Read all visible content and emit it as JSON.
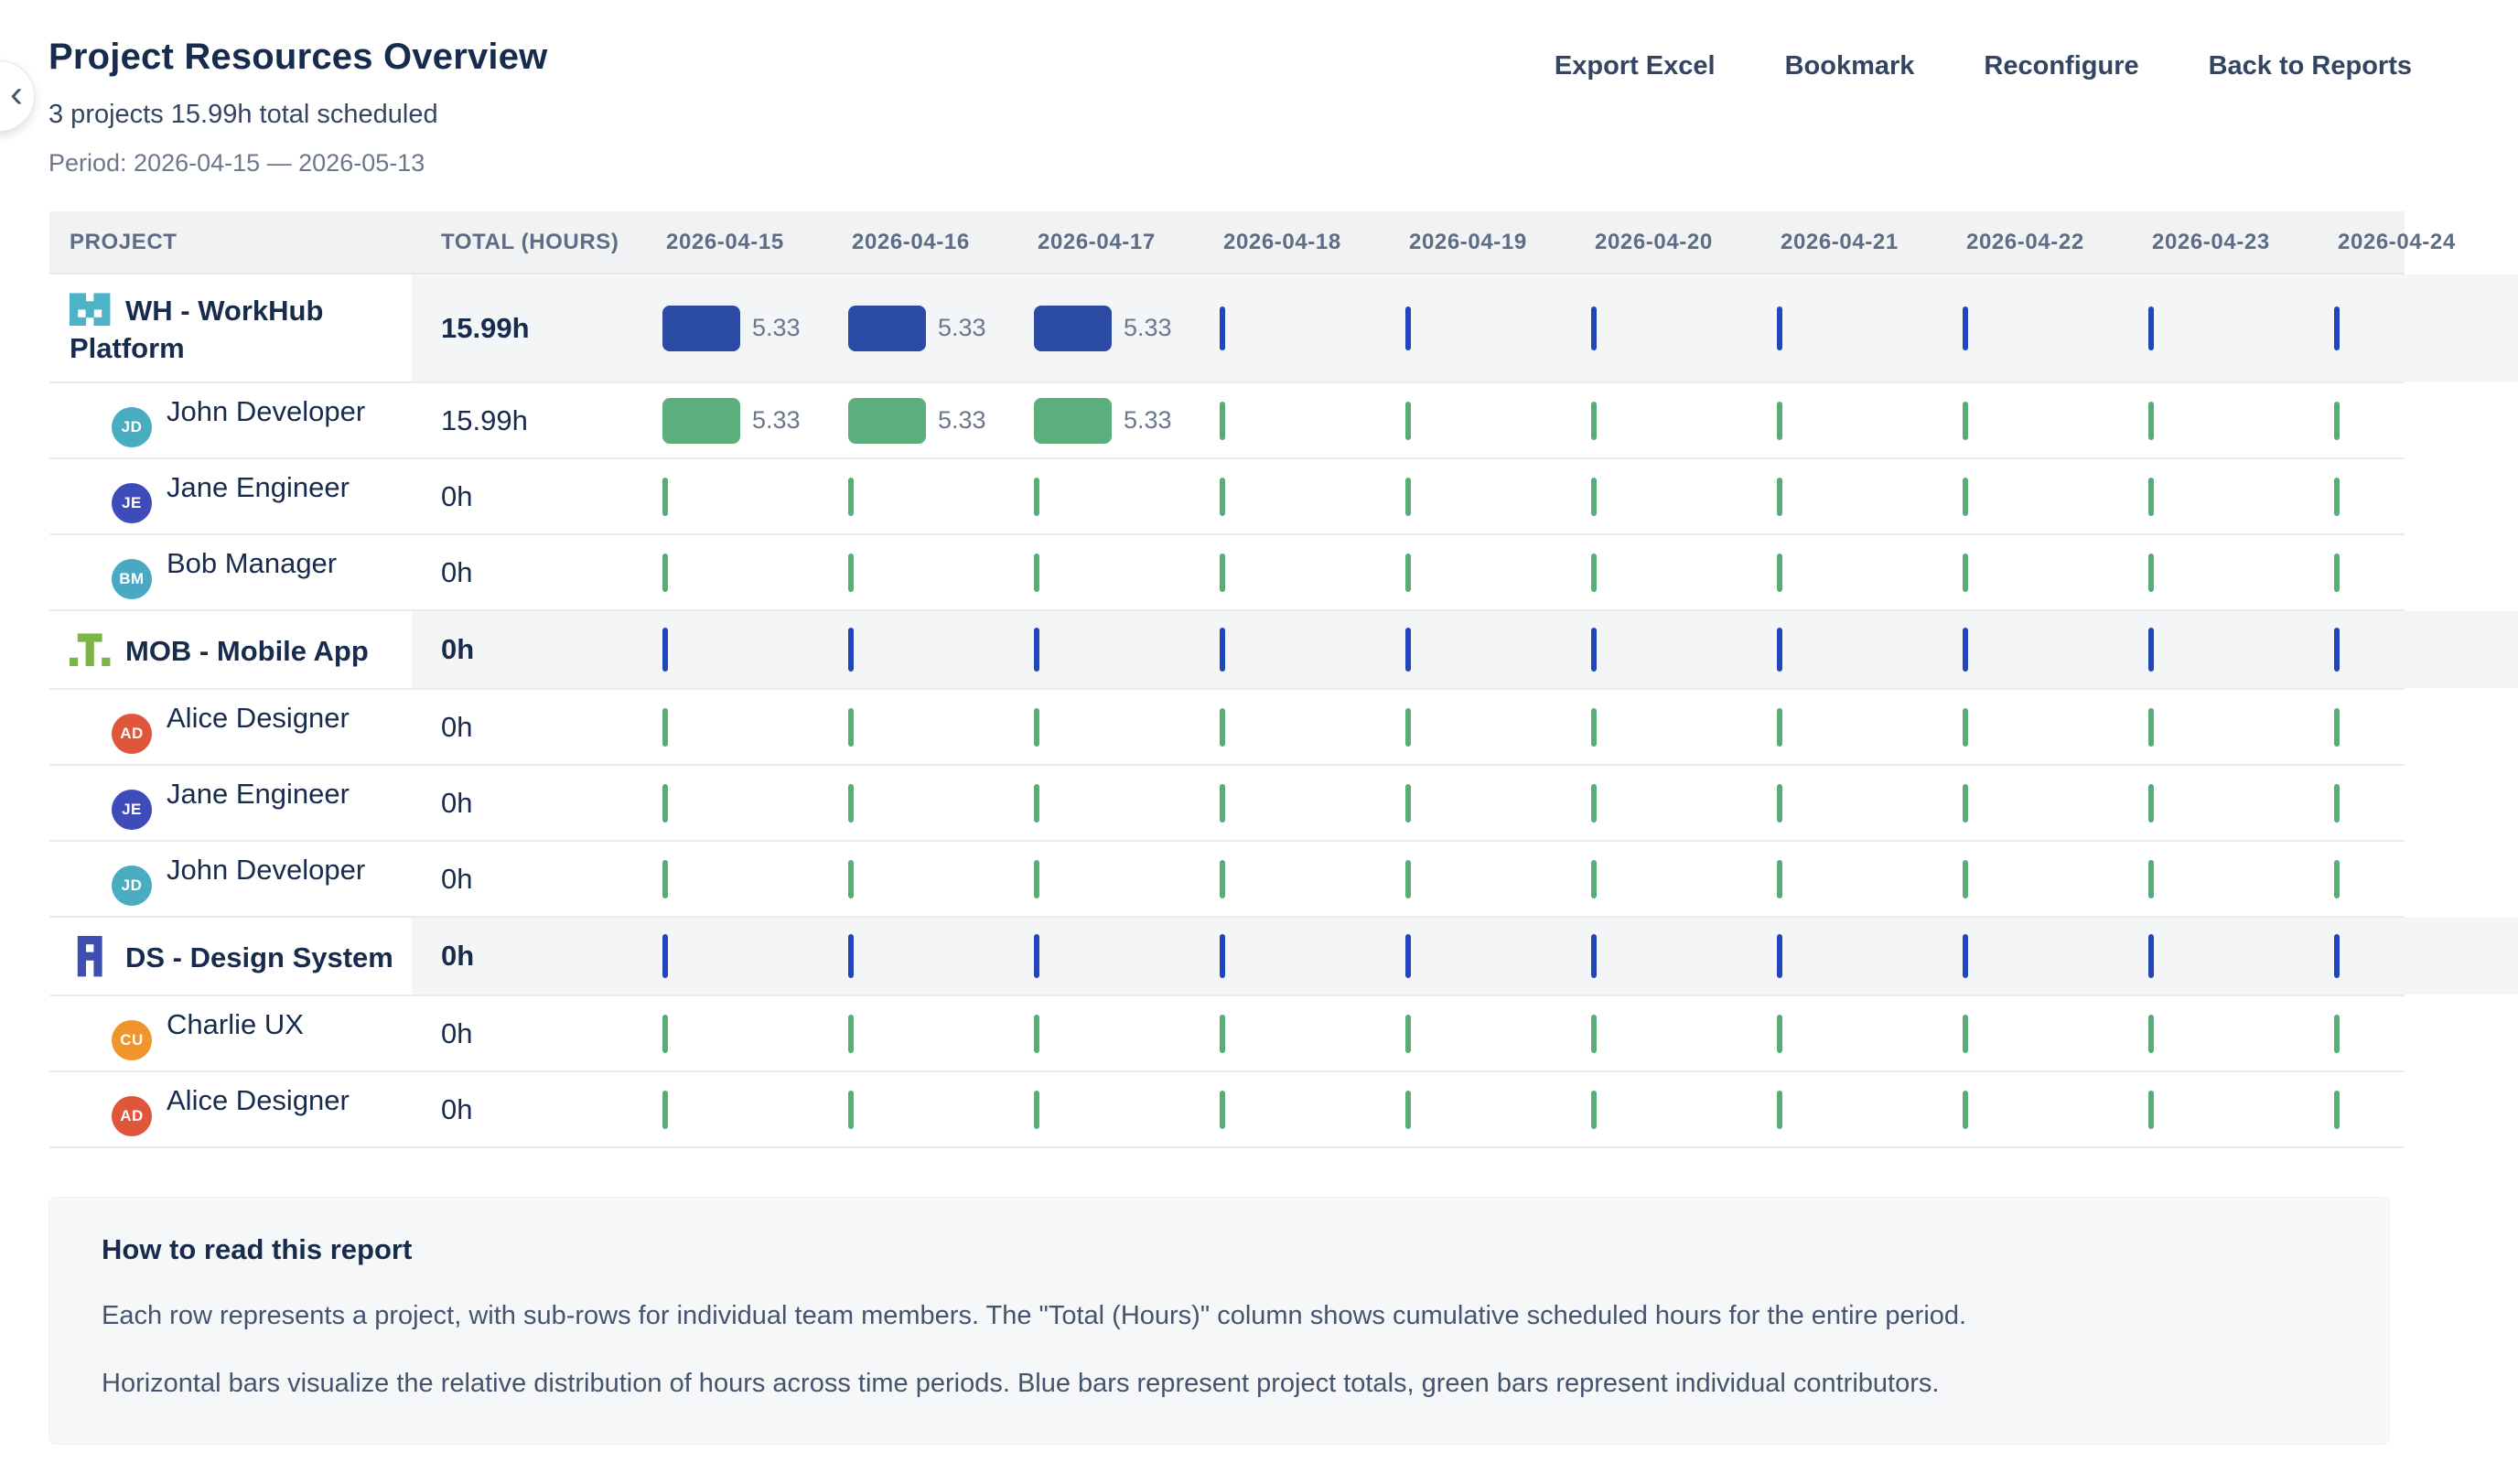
{
  "page": {
    "title": "Project Resources Overview",
    "subtitle": "3 projects 15.99h total scheduled",
    "period": "Period: 2026-04-15 — 2026-05-13"
  },
  "back_button": {
    "icon": "chevron-left-icon",
    "glyph": "‹"
  },
  "toolbar": {
    "items": [
      {
        "label": "Export Excel"
      },
      {
        "label": "Bookmark"
      },
      {
        "label": "Reconfigure"
      },
      {
        "label": "Back to Reports"
      }
    ]
  },
  "colors": {
    "project_bar": "#2A4AA4",
    "project_tick": "#2146BC",
    "member_bar": "#5CAE7D",
    "member_tick": "#58AC77",
    "header_bg": "#F1F2F4",
    "project_row_bg": "#F4F5F7"
  },
  "table": {
    "project_col_label": "PROJECT",
    "total_col_label": "TOTAL (HOURS)",
    "dates": [
      "2026-04-15",
      "2026-04-16",
      "2026-04-17",
      "2026-04-18",
      "2026-04-19",
      "2026-04-20",
      "2026-04-21",
      "2026-04-22",
      "2026-04-23",
      "2026-04-24"
    ],
    "rows": [
      {
        "type": "project",
        "name": "WH - WorkHub Platform",
        "total": "15.99h",
        "icon": "workhub-project-icon",
        "icon_color": "#4DB3C9",
        "tall": true,
        "values": [
          5.33,
          5.33,
          5.33,
          0,
          0,
          0,
          0,
          0,
          0,
          0
        ],
        "value_labels": [
          "5.33",
          "5.33",
          "5.33",
          "",
          "",
          "",
          "",
          "",
          "",
          ""
        ]
      },
      {
        "type": "member",
        "name": "John Developer",
        "total": "15.99h",
        "initials": "JD",
        "avatar_color": "#49ADC2",
        "values": [
          5.33,
          5.33,
          5.33,
          0,
          0,
          0,
          0,
          0,
          0,
          0
        ],
        "value_labels": [
          "5.33",
          "5.33",
          "5.33",
          "",
          "",
          "",
          "",
          "",
          "",
          ""
        ]
      },
      {
        "type": "member",
        "name": "Jane Engineer",
        "total": "0h",
        "initials": "JE",
        "avatar_color": "#3D4CB8",
        "values": [
          0,
          0,
          0,
          0,
          0,
          0,
          0,
          0,
          0,
          0
        ],
        "value_labels": [
          "",
          "",
          "",
          "",
          "",
          "",
          "",
          "",
          "",
          ""
        ]
      },
      {
        "type": "member",
        "name": "Bob Manager",
        "total": "0h",
        "initials": "BM",
        "avatar_color": "#49A9C4",
        "values": [
          0,
          0,
          0,
          0,
          0,
          0,
          0,
          0,
          0,
          0
        ],
        "value_labels": [
          "",
          "",
          "",
          "",
          "",
          "",
          "",
          "",
          "",
          ""
        ]
      },
      {
        "type": "project",
        "name": "MOB - Mobile App",
        "total": "0h",
        "icon": "mobile-project-icon",
        "icon_color": "#7CB446",
        "tall": false,
        "values": [
          0,
          0,
          0,
          0,
          0,
          0,
          0,
          0,
          0,
          0
        ],
        "value_labels": [
          "",
          "",
          "",
          "",
          "",
          "",
          "",
          "",
          "",
          ""
        ]
      },
      {
        "type": "member",
        "name": "Alice Designer",
        "total": "0h",
        "initials": "AD",
        "avatar_color": "#E0563B",
        "values": [
          0,
          0,
          0,
          0,
          0,
          0,
          0,
          0,
          0,
          0
        ],
        "value_labels": [
          "",
          "",
          "",
          "",
          "",
          "",
          "",
          "",
          "",
          ""
        ]
      },
      {
        "type": "member",
        "name": "Jane Engineer",
        "total": "0h",
        "initials": "JE",
        "avatar_color": "#3D4CB8",
        "values": [
          0,
          0,
          0,
          0,
          0,
          0,
          0,
          0,
          0,
          0
        ],
        "value_labels": [
          "",
          "",
          "",
          "",
          "",
          "",
          "",
          "",
          "",
          ""
        ]
      },
      {
        "type": "member",
        "name": "John Developer",
        "total": "0h",
        "initials": "JD",
        "avatar_color": "#49ADC2",
        "values": [
          0,
          0,
          0,
          0,
          0,
          0,
          0,
          0,
          0,
          0
        ],
        "value_labels": [
          "",
          "",
          "",
          "",
          "",
          "",
          "",
          "",
          "",
          ""
        ]
      },
      {
        "type": "project",
        "name": "DS - Design System",
        "total": "0h",
        "icon": "design-project-icon",
        "icon_color": "#3F4FB0",
        "tall": false,
        "values": [
          0,
          0,
          0,
          0,
          0,
          0,
          0,
          0,
          0,
          0
        ],
        "value_labels": [
          "",
          "",
          "",
          "",
          "",
          "",
          "",
          "",
          "",
          ""
        ]
      },
      {
        "type": "member",
        "name": "Charlie UX",
        "total": "0h",
        "initials": "CU",
        "avatar_color": "#F0952C",
        "values": [
          0,
          0,
          0,
          0,
          0,
          0,
          0,
          0,
          0,
          0
        ],
        "value_labels": [
          "",
          "",
          "",
          "",
          "",
          "",
          "",
          "",
          "",
          ""
        ]
      },
      {
        "type": "member",
        "name": "Alice Designer",
        "total": "0h",
        "initials": "AD",
        "avatar_color": "#E0563B",
        "values": [
          0,
          0,
          0,
          0,
          0,
          0,
          0,
          0,
          0,
          0
        ],
        "value_labels": [
          "",
          "",
          "",
          "",
          "",
          "",
          "",
          "",
          "",
          ""
        ]
      }
    ]
  },
  "info_box": {
    "heading": "How to read this report",
    "paragraphs": [
      "Each row represents a project, with sub-rows for individual team members. The \"Total (Hours)\" column shows cumulative scheduled hours for the entire period.",
      "Horizontal bars visualize the relative distribution of hours across time periods. Blue bars represent project totals, green bars represent individual contributors."
    ]
  }
}
